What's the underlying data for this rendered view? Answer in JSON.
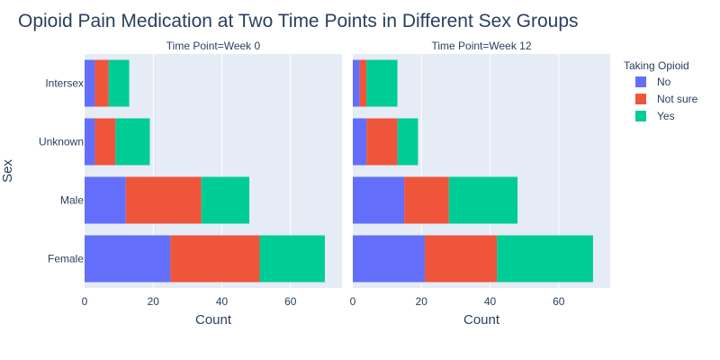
{
  "chart_data": {
    "type": "bar",
    "orientation": "horizontal",
    "stacked": true,
    "title": "Opioid Pain Medication at Two Time Points in Different Sex Groups",
    "ylabel": "Sex",
    "xlabel": "Count",
    "categories": [
      "Female",
      "Male",
      "Unknown",
      "Intersex"
    ],
    "xlim": [
      0,
      75
    ],
    "xticks": [
      0,
      20,
      40,
      60
    ],
    "grid": true,
    "legend": {
      "title": "Taking Opioid",
      "placement": "top-right",
      "entries": [
        "No",
        "Not sure",
        "Yes"
      ]
    },
    "colors": {
      "No": "#636efa",
      "Not sure": "#ef553b",
      "Yes": "#00cc96"
    },
    "panels": [
      {
        "title": "Time Point=Week 0",
        "series": [
          {
            "name": "No",
            "values": [
              25,
              12,
              3,
              3
            ]
          },
          {
            "name": "Not sure",
            "values": [
              26,
              22,
              6,
              4
            ]
          },
          {
            "name": "Yes",
            "values": [
              19,
              14,
              10,
              6
            ]
          }
        ]
      },
      {
        "title": "Time Point=Week 12",
        "series": [
          {
            "name": "No",
            "values": [
              21,
              15,
              4,
              2
            ]
          },
          {
            "name": "Not sure",
            "values": [
              21,
              13,
              9,
              2
            ]
          },
          {
            "name": "Yes",
            "values": [
              28,
              20,
              6,
              9
            ]
          }
        ]
      }
    ]
  }
}
